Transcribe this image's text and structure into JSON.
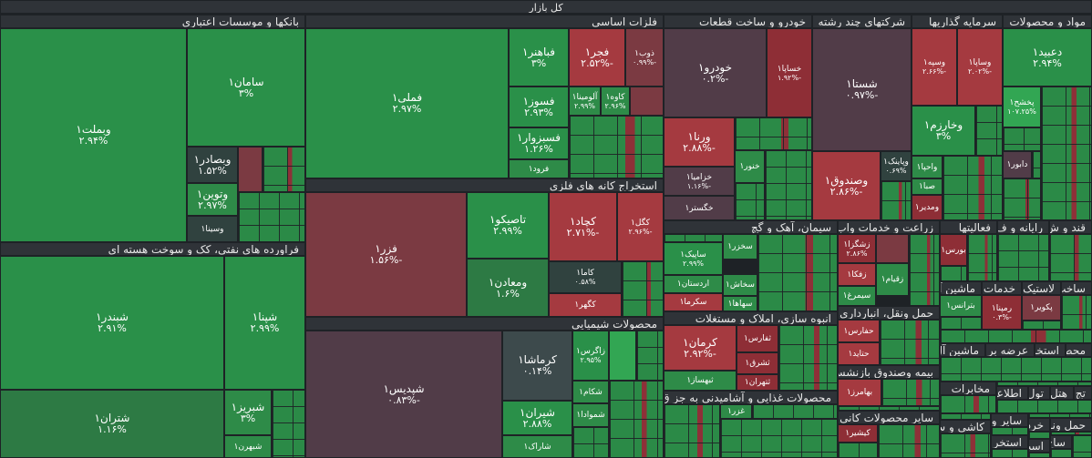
{
  "title": "کل بازار",
  "sectors": {
    "banks": "بانکها و موسسات اعتباری",
    "metals": "فلزات اساسی",
    "auto": "خودرو و ساخت قطعات",
    "multi": "شرکتهای چند رشته",
    "invest": "سرمایه گذاریها",
    "materials": "مواد و محصولات",
    "refinery": "فراورده های نفتی، کک و سوخت هسته ای",
    "mining": "استخراج کانه های فلزی",
    "chemical": "محصولات شیمیایی",
    "cement": "سیمان، آهک و گچ",
    "agri": "زراعت و خدمات واب",
    "activities": "فعالیتها",
    "qand": "قند و ش",
    "rayane": "رایانه و ف",
    "transport": "حمل ونقل، انبارداری",
    "masskan": "انبوه سازی، املاک و مستغلات",
    "insurance": "بیمه وصندوق بازنشس",
    "food": "محصولات غذایی و آشامیدنی به جز ق",
    "nonmetal": "سایر محصولات کانی"
  },
  "tiles": {
    "vbmellat": {
      "name": "وبملت۱",
      "value": "۲.۹۴%"
    },
    "saman": {
      "name": "سامان۱",
      "value": "۳%"
    },
    "vbsader": {
      "name": "وبصادر۱",
      "value": "۱.۵۲%"
    },
    "vtovin": {
      "name": "وتوین۱",
      "value": "۲.۹۷%"
    },
    "vsina": {
      "name": "وسینا۱"
    },
    "femeli": {
      "name": "فملی۱",
      "value": "۲.۹۷%"
    },
    "fabahonar": {
      "name": "فباهنر۱",
      "value": "۳%"
    },
    "fajr": {
      "name": "فجر۱",
      "value": "-۲.۵۲%"
    },
    "zob": {
      "name": "ذوب۱",
      "value": "-۰.۹۹%"
    },
    "fasoz": {
      "name": "فسوز۱",
      "value": "۲.۹۳%"
    },
    "aluminium": {
      "name": "آلومینا۱",
      "value": "۲.۹۹%"
    },
    "kave": {
      "name": "کاوه۱",
      "value": "۲.۹۶%"
    },
    "fasbzvar": {
      "name": "فسبزوار۱",
      "value": "۱.۲۶%"
    },
    "forod": {
      "name": "فرود۱"
    },
    "khodro": {
      "name": "خودرو۱",
      "value": "-۰.۲%"
    },
    "khsapa": {
      "name": "خساپا۱",
      "value": "-۱.۹۲%"
    },
    "vrena": {
      "name": "ورنا۱",
      "value": "-۲.۸۸%"
    },
    "khzamia": {
      "name": "خزامیا۱",
      "value": "-۱.۱۶%"
    },
    "khegostar": {
      "name": "خگستر۱"
    },
    "khnour": {
      "name": "خنور۱"
    },
    "shasta": {
      "name": "شستا۱",
      "value": "-۰.۹۷%"
    },
    "vsandoq": {
      "name": "وصندوق۱",
      "value": "-۲.۸۶%"
    },
    "vpaink": {
      "name": "وپاینک۱",
      "value": "۰.۶۹%"
    },
    "vsepah": {
      "name": "وسپه۱",
      "value": "-۲.۶۶%"
    },
    "vsapa": {
      "name": "وساپا۱",
      "value": "-۲.۰۲%"
    },
    "vkharazm": {
      "name": "وخارزم۱",
      "value": "۳%"
    },
    "vahpa": {
      "name": "واحپا۱"
    },
    "saba": {
      "name": "صبا۱"
    },
    "vmadir": {
      "name": "ومدیر۱"
    },
    "dabid": {
      "name": "دعبید۱",
      "value": "۲.۹۴%"
    },
    "pakhsh": {
      "name": "پخشح۱",
      "value": "۱۰۷.۲۵%"
    },
    "dabour": {
      "name": "دابور۱"
    },
    "shebandar": {
      "name": "شبندر۱",
      "value": "۲.۹۱%"
    },
    "shepna": {
      "name": "شپنا۱",
      "value": "۲.۹۹%"
    },
    "shetran": {
      "name": "شتران۱",
      "value": "۱.۱۶%"
    },
    "shebriz": {
      "name": "شبریز۱",
      "value": "۳%"
    },
    "shebhran": {
      "name": "شبهرن۱"
    },
    "fazar": {
      "name": "فزر۱",
      "value": "-۱.۵۶%"
    },
    "tasiko": {
      "name": "تاصیکو۱",
      "value": "۲.۹۹%"
    },
    "kechad": {
      "name": "کچاد۱",
      "value": "-۲.۷۱%"
    },
    "kegol": {
      "name": "کگل۱",
      "value": "-۲.۹۶%"
    },
    "vmaaden": {
      "name": "ومعادن۱",
      "value": "۱.۶%"
    },
    "kama": {
      "name": "کاما۱",
      "value": "۰.۵۸%"
    },
    "kegohar": {
      "name": "کگهر۱"
    },
    "shepdis": {
      "name": "شپدیس۱",
      "value": "-۰.۸۳%"
    },
    "kermasha": {
      "name": "کرماشا۱",
      "value": "۰.۱۴%"
    },
    "zagros": {
      "name": "زاگرس۱",
      "value": "۲.۹۵%"
    },
    "shekam": {
      "name": "شکام۱"
    },
    "shiran": {
      "name": "شیران۱",
      "value": "۲.۸۸%"
    },
    "shamvad": {
      "name": "شموادا۱"
    },
    "sharak": {
      "name": "شاراک۱"
    },
    "sakhzar": {
      "name": "سخزر۱"
    },
    "sapik": {
      "name": "ساپیک۱",
      "value": "۲.۹۹%"
    },
    "sakhash": {
      "name": "سخاش۱"
    },
    "ardestan": {
      "name": "اردستان۱"
    },
    "sakarma": {
      "name": "سکرما۱"
    },
    "sahaha": {
      "name": "سهاها۱"
    },
    "zeshgaza": {
      "name": "زشگزا۱",
      "value": "۲.۸۶%"
    },
    "zefka": {
      "name": "زفکا۱"
    },
    "zeqiam": {
      "name": "زقیام۱"
    },
    "simorgh": {
      "name": "سیمرغ۱"
    },
    "bourse": {
      "name": "بورس۱"
    },
    "mashin": {
      "name": "ماشین آ"
    },
    "khadamat": {
      "name": "خدمات"
    },
    "lastik": {
      "name": "لاستیک"
    },
    "sakht": {
      "name": "ساخت"
    },
    "betranes": {
      "name": "بترانس۱"
    },
    "ramapna": {
      "name": "رمپنا۱",
      "value": "-۰.۳%"
    },
    "pakvir": {
      "name": "پکویر۱"
    },
    "hafars": {
      "name": "حفارس۱"
    },
    "hatayd": {
      "name": "حتاید۱"
    },
    "mashinal": {
      "name": "ماشین آل"
    },
    "arzebar": {
      "name": "عرضه بر"
    },
    "estekhr": {
      "name": "استخر"
    },
    "mahas": {
      "name": "محص"
    },
    "kerman": {
      "name": "کرمان۱",
      "value": "-۲.۹۲%"
    },
    "sefars": {
      "name": "ثفارس۱"
    },
    "shorq": {
      "name": "ثشرق۱"
    },
    "sebahsaz": {
      "name": "ثبهساز۱"
    },
    "tehran": {
      "name": "ثتهران۱"
    },
    "bahamz": {
      "name": "بهامرز۱"
    },
    "mokhaberat": {
      "name": "مخابرات"
    },
    "etelaa": {
      "name": "اطلاعا"
    },
    "tol": {
      "name": "تول"
    },
    "hatl": {
      "name": "هتل"
    },
    "taj": {
      "name": "تج"
    },
    "ghazar": {
      "name": "غزر۱"
    },
    "kishir": {
      "name": "کیشیر۱"
    },
    "saayer": {
      "name": "سایر و"
    },
    "kashi": {
      "name": "کاشی و س"
    },
    "haml": {
      "name": "حمل ونق"
    },
    "khard": {
      "name": "خرد"
    },
    "estkhr2": {
      "name": "استخر"
    },
    "ast": {
      "name": "است"
    },
    "sakh": {
      "name": "ساخ"
    }
  },
  "colors": {
    "positive": "#2a9049",
    "negative": "#a53a40",
    "neutral": "#3d4a4c",
    "header": "#2f3338"
  }
}
